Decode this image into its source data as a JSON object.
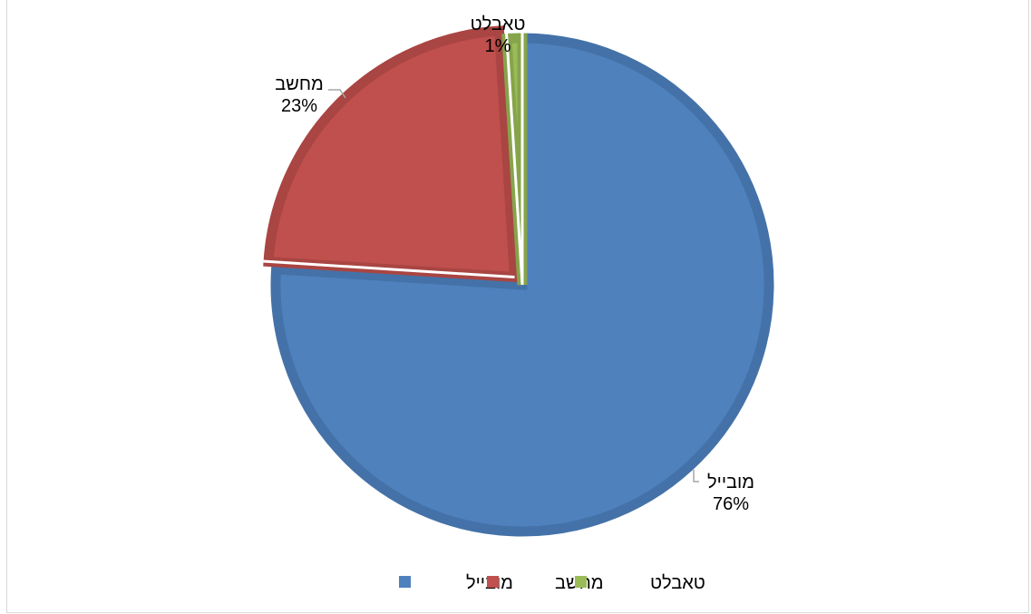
{
  "chart_data": {
    "type": "pie",
    "categories": [
      "מובייל",
      "מחשב",
      "טאבלט"
    ],
    "values": [
      76,
      23,
      1
    ],
    "value_labels": [
      "76%",
      "23%",
      "1%"
    ],
    "exploded": [
      false,
      true,
      false
    ],
    "colors": [
      "#4f81bd",
      "#c0504d",
      "#9bbb59"
    ],
    "border_colors": [
      "#4472a8",
      "#a94542",
      "#86a44a"
    ],
    "legend": {
      "position": "bottom",
      "entries": [
        "מובייל",
        "מחשב",
        "טאבלט"
      ]
    }
  }
}
